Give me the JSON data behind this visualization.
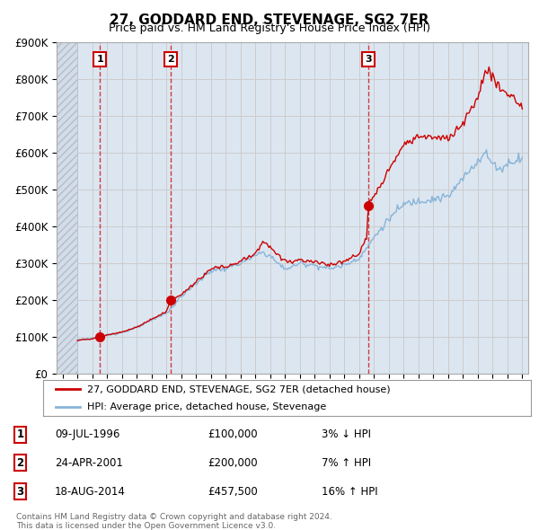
{
  "title": "27, GODDARD END, STEVENAGE, SG2 7ER",
  "subtitle": "Price paid vs. HM Land Registry's House Price Index (HPI)",
  "ylim": [
    0,
    900000
  ],
  "yticks": [
    0,
    100000,
    200000,
    300000,
    400000,
    500000,
    600000,
    700000,
    800000,
    900000
  ],
  "ytick_labels": [
    "£0",
    "£100K",
    "£200K",
    "£300K",
    "£400K",
    "£500K",
    "£600K",
    "£700K",
    "£800K",
    "£900K"
  ],
  "xlim_start": 1993.6,
  "xlim_end": 2025.4,
  "hatch_end_year": 1995.0,
  "sales": [
    {
      "year": 1996.53,
      "price": 100000,
      "label": "1"
    },
    {
      "year": 2001.31,
      "price": 200000,
      "label": "2"
    },
    {
      "year": 2014.63,
      "price": 457500,
      "label": "3"
    }
  ],
  "sale_vline_color": "#cc0000",
  "sale_marker_color": "#cc0000",
  "red_line_color": "#cc0000",
  "blue_line_color": "#88b4d8",
  "hatch_face_color": "#d4dce8",
  "hatch_edge_color": "#b0bece",
  "grid_color": "#cccccc",
  "bg_color": "#dce6f0",
  "legend_entries": [
    "27, GODDARD END, STEVENAGE, SG2 7ER (detached house)",
    "HPI: Average price, detached house, Stevenage"
  ],
  "table_rows": [
    {
      "label": "1",
      "date": "09-JUL-1996",
      "price": "£100,000",
      "hpi": "3% ↓ HPI"
    },
    {
      "label": "2",
      "date": "24-APR-2001",
      "price": "£200,000",
      "hpi": "7% ↑ HPI"
    },
    {
      "label": "3",
      "date": "18-AUG-2014",
      "price": "£457,500",
      "hpi": "16% ↑ HPI"
    }
  ],
  "footnote1": "Contains HM Land Registry data © Crown copyright and database right 2024.",
  "footnote2": "This data is licensed under the Open Government Licence v3.0."
}
